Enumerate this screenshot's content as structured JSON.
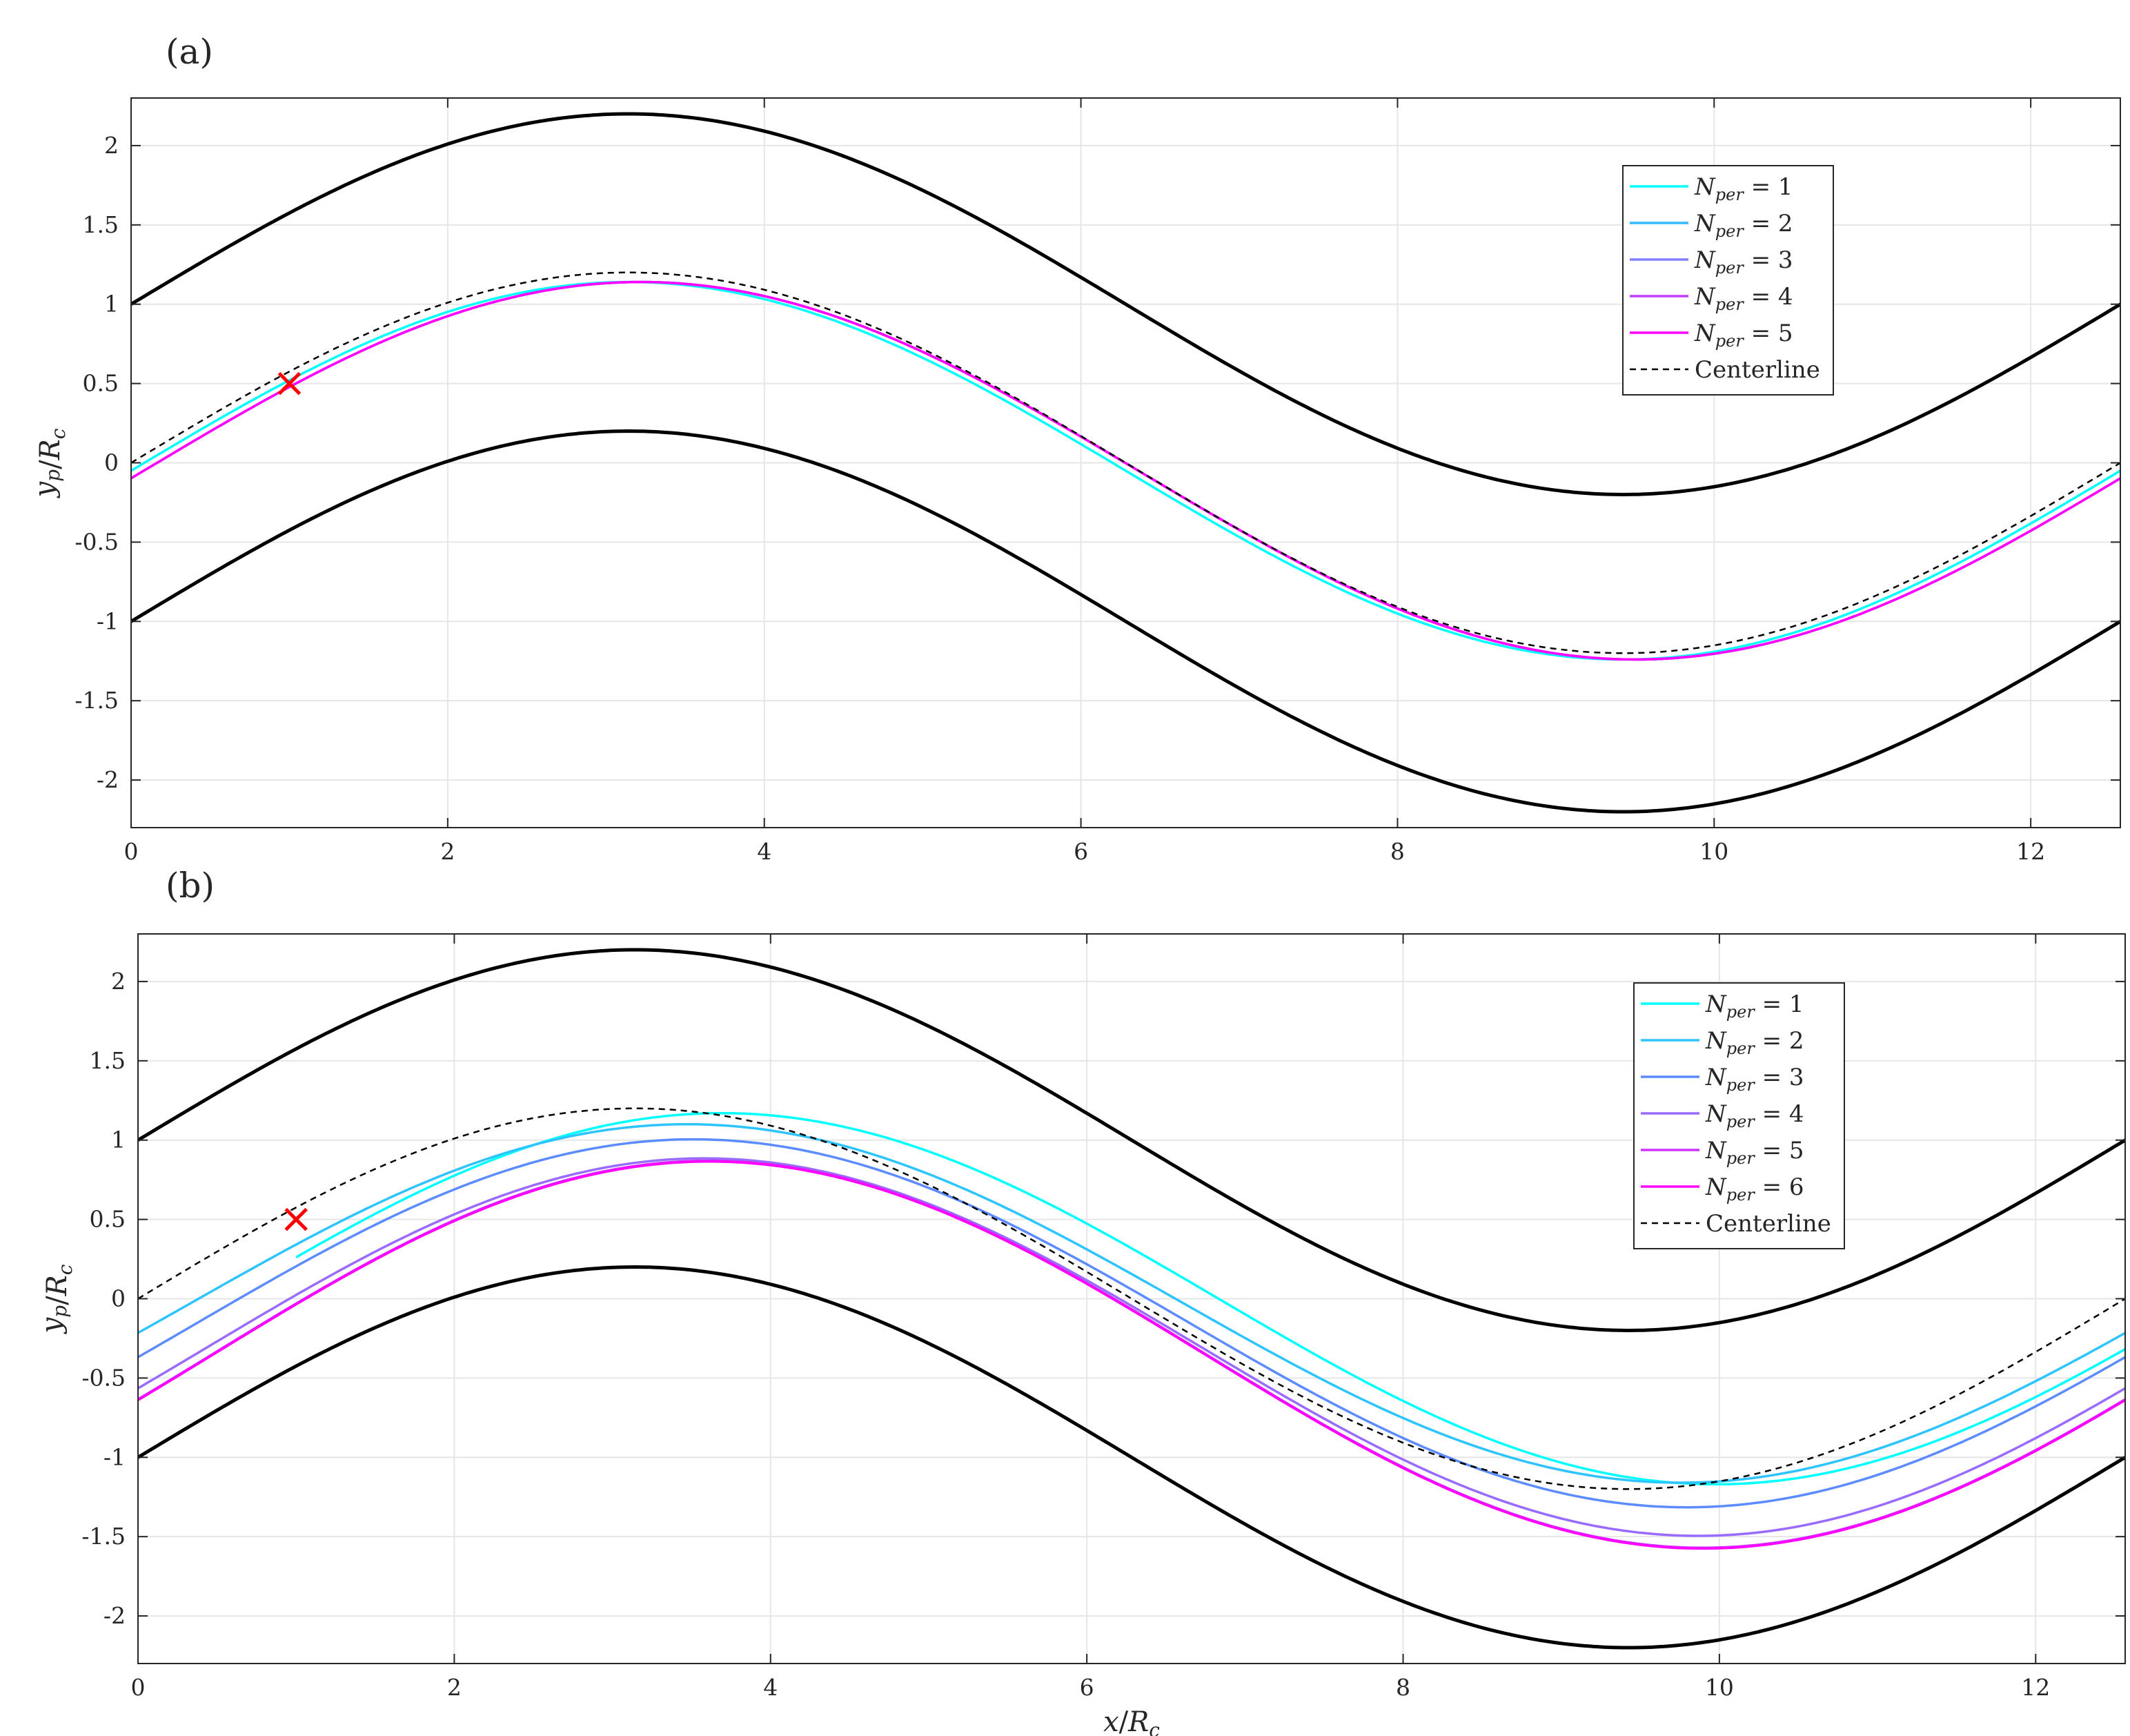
{
  "chart_data": [
    {
      "panel_label": "(a)",
      "type": "line",
      "xlabel": "",
      "ylabel": "y_p/R_c",
      "xlim": [
        0,
        12.566
      ],
      "ylim": [
        -2.3,
        2.3
      ],
      "xticks": [
        0,
        2,
        4,
        6,
        8,
        10,
        12
      ],
      "yticks": [
        -2,
        -1.5,
        -1,
        -0.5,
        0,
        0.5,
        1,
        1.5,
        2
      ],
      "xtick_labels": [
        "0",
        "2",
        "4",
        "6",
        "8",
        "10",
        "12"
      ],
      "ytick_labels": [
        "-2",
        "-1.5",
        "-1",
        "-0.5",
        "0",
        "0.5",
        "1",
        "1.5",
        "2"
      ],
      "grid": true,
      "legend_position": "top-right",
      "walls": {
        "upper": "1 + 1.2·sin(x/2)",
        "lower": "-1 + 1.2·sin(x/2)",
        "color": "#000000"
      },
      "centerline": {
        "label": "Centerline",
        "amplitude": 1.2,
        "color": "#000000",
        "style": "dashed"
      },
      "marker": {
        "x": 1.0,
        "y": 0.5,
        "color": "#ff0000",
        "symbol": "x"
      },
      "series": [
        {
          "name": "N_per = 1",
          "sub": "per",
          "num": "1",
          "color": "#00ffff",
          "amp": 1.19,
          "phase": 0.0,
          "offset": -0.05
        },
        {
          "name": "N_per = 2",
          "sub": "per",
          "num": "2",
          "color": "#33bbff",
          "amp": 1.19,
          "phase": 0.08,
          "offset": -0.05
        },
        {
          "name": "N_per = 3",
          "sub": "per",
          "num": "3",
          "color": "#7f7fff",
          "amp": 1.19,
          "phase": 0.08,
          "offset": -0.05
        },
        {
          "name": "N_per = 4",
          "sub": "per",
          "num": "4",
          "color": "#bf3fff",
          "amp": 1.19,
          "phase": 0.08,
          "offset": -0.05
        },
        {
          "name": "N_per = 5",
          "sub": "per",
          "num": "5",
          "color": "#ff00ff",
          "amp": 1.19,
          "phase": 0.08,
          "offset": -0.05
        }
      ]
    },
    {
      "panel_label": "(b)",
      "type": "line",
      "xlabel": "x/R_c",
      "ylabel": "y_p/R_c",
      "xlim": [
        0,
        12.566
      ],
      "ylim": [
        -2.3,
        2.3
      ],
      "xticks": [
        0,
        2,
        4,
        6,
        8,
        10,
        12
      ],
      "yticks": [
        -2,
        -1.5,
        -1,
        -0.5,
        0,
        0.5,
        1,
        1.5,
        2
      ],
      "xtick_labels": [
        "0",
        "2",
        "4",
        "6",
        "8",
        "10",
        "12"
      ],
      "ytick_labels": [
        "-2",
        "-1.5",
        "-1",
        "-0.5",
        "0",
        "0.5",
        "1",
        "1.5",
        "2"
      ],
      "grid": true,
      "legend_position": "top-right",
      "walls": {
        "upper": "1 + 1.2·sin(x/2)",
        "lower": "-1 + 1.2·sin(x/2)",
        "color": "#000000"
      },
      "centerline": {
        "label": "Centerline",
        "amplitude": 1.2,
        "color": "#000000",
        "style": "dashed"
      },
      "marker": {
        "x": 1.0,
        "y": 0.5,
        "color": "#ff0000",
        "symbol": "x"
      },
      "series": [
        {
          "name": "N_per = 1",
          "sub": "per",
          "num": "1",
          "color": "#00ffff",
          "amp": 1.17,
          "phase": 0.55,
          "offset": 0.0,
          "x_start": 1.0
        },
        {
          "name": "N_per = 2",
          "sub": "per",
          "num": "2",
          "color": "#2ec4ff",
          "amp": 1.13,
          "phase": 0.33,
          "offset": -0.03
        },
        {
          "name": "N_per = 3",
          "sub": "per",
          "num": "3",
          "color": "#5c8cff",
          "amp": 1.16,
          "phase": 0.37,
          "offset": -0.155
        },
        {
          "name": "N_per = 4",
          "sub": "per",
          "num": "4",
          "color": "#9a6bff",
          "amp": 1.19,
          "phase": 0.44,
          "offset": -0.305
        },
        {
          "name": "N_per = 5",
          "sub": "per",
          "num": "5",
          "color": "#cc33ff",
          "amp": 1.22,
          "phase": 0.47,
          "offset": -0.35
        },
        {
          "name": "N_per = 6",
          "sub": "per",
          "num": "6",
          "color": "#ff00ff",
          "amp": 1.22,
          "phase": 0.47,
          "offset": -0.355
        }
      ]
    }
  ]
}
